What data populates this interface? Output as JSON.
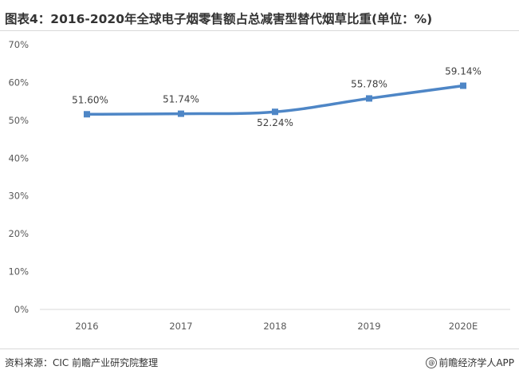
{
  "title": "图表4：2016-2020年全球电子烟零售额占总减害型替代烟草比重(单位：%)",
  "chart_data": {
    "type": "line",
    "categories": [
      "2016",
      "2017",
      "2018",
      "2019",
      "2020E"
    ],
    "series": [
      {
        "values": [
          51.6,
          51.74,
          52.24,
          55.78,
          59.14
        ],
        "labels": [
          "51.60%",
          "51.74%",
          "52.24%",
          "55.78%",
          "59.14%"
        ],
        "color": "#4e86c6"
      }
    ],
    "ylim": [
      0,
      70
    ],
    "yticks": [
      0,
      10,
      20,
      30,
      40,
      50,
      60,
      70
    ],
    "ytick_labels": [
      "0%",
      "10%",
      "20%",
      "30%",
      "40%",
      "50%",
      "60%",
      "70%"
    ],
    "xlabel": "",
    "ylabel": "",
    "grid": false,
    "legend": "none"
  },
  "footer": {
    "source": "资料来源：CIC 前瞻产业研究院整理",
    "brand_symbol": "@",
    "brand": "前瞻经济学人APP"
  }
}
